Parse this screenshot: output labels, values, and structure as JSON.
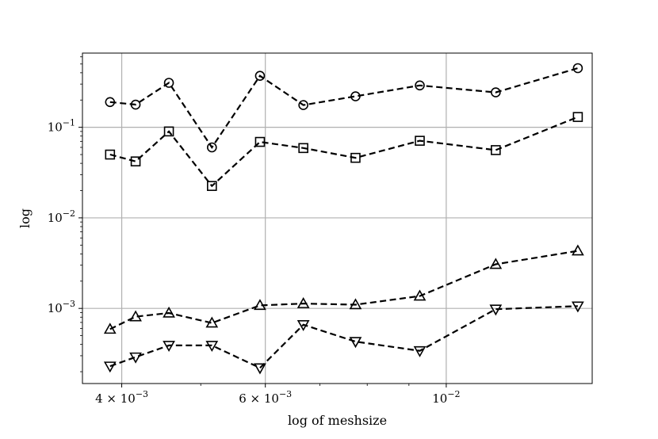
{
  "chart_data": {
    "type": "line",
    "xlabel": "log of meshsize",
    "ylabel": "log",
    "xscale": "log",
    "yscale": "log",
    "xlim": [
      0.00358,
      0.0151
    ],
    "ylim": [
      0.000148,
      0.66
    ],
    "grid": "major ticks only",
    "x_ticks": [
      {
        "value": 0.004,
        "label": "4 × 10−3",
        "mant": "4 × 10",
        "exp": "−3"
      },
      {
        "value": 0.006,
        "label": "6 × 10−3",
        "mant": "6 × 10",
        "exp": "−3"
      },
      {
        "value": 0.01,
        "label": "10−2",
        "mant": "10",
        "exp": "−2"
      }
    ],
    "x_minor_ticks": [
      0.005,
      0.007,
      0.008,
      0.009
    ],
    "y_ticks": [
      {
        "value": 0.001,
        "label": "10−3",
        "mant": "10",
        "exp": "−3"
      },
      {
        "value": 0.01,
        "label": "10−2",
        "mant": "10",
        "exp": "−2"
      },
      {
        "value": 0.1,
        "label": "10−1",
        "mant": "10",
        "exp": "−1"
      }
    ],
    "x": [
      0.00387,
      0.00416,
      0.00457,
      0.00516,
      0.00591,
      0.00668,
      0.00774,
      0.00928,
      0.0115,
      0.0145
    ],
    "series": [
      {
        "marker": "circle",
        "color": "#000000",
        "linestyle": "dashed",
        "values": [
          0.19,
          0.178,
          0.31,
          0.06,
          0.37,
          0.176,
          0.22,
          0.29,
          0.243,
          0.45
        ]
      },
      {
        "marker": "square",
        "color": "#000000",
        "linestyle": "dashed",
        "values": [
          0.05,
          0.042,
          0.09,
          0.0225,
          0.069,
          0.059,
          0.046,
          0.071,
          0.056,
          0.13
        ]
      },
      {
        "marker": "triangle-up",
        "color": "#000000",
        "linestyle": "dashed",
        "values": [
          0.00059,
          0.00081,
          0.00089,
          0.00069,
          0.00108,
          0.00113,
          0.0011,
          0.00137,
          0.00307,
          0.00432
        ]
      },
      {
        "marker": "triangle-down",
        "color": "#000000",
        "linestyle": "dashed",
        "values": [
          0.00023,
          0.00029,
          0.00039,
          0.00039,
          0.00022,
          0.00066,
          0.00043,
          0.00034,
          0.00098,
          0.00106
        ]
      }
    ]
  }
}
